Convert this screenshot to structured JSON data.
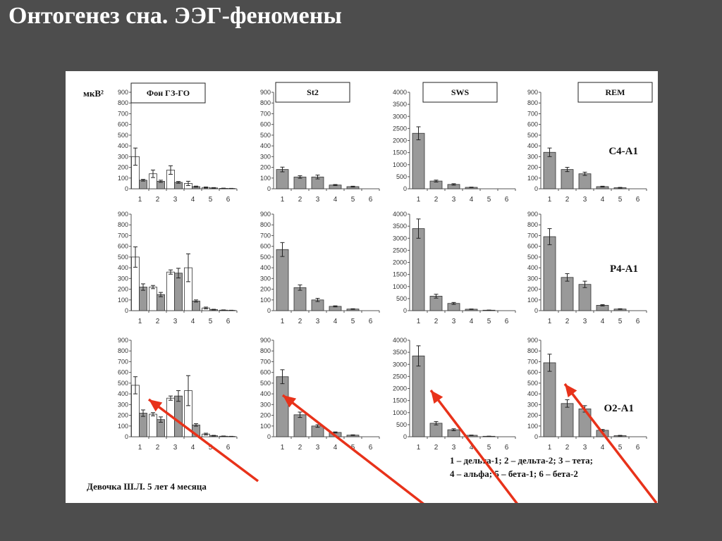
{
  "slide": {
    "title": "Онтогенез сна. ЭЭГ-феномены"
  },
  "figure": {
    "y_unit": "мкВ²",
    "column_titles": [
      "Фон ГЗ-ГО",
      "St2",
      "SWS",
      "REM"
    ],
    "row_labels": [
      "C4-A1",
      "P4-A1",
      "O2-A1"
    ],
    "x_ticks": [
      "1",
      "2",
      "3",
      "4",
      "5",
      "6"
    ],
    "legend": [
      "1 – дельта-1; 2 – дельта-2; 3 – тета;",
      "4 – альфа;  5 – бета-1;  6 – бета-2"
    ],
    "caption": "Девочка Ш.Л. 5 лет 4 месяца",
    "colors": {
      "filled_bar": "#999999",
      "open_bar": "#ffffff",
      "arrow": "#e8321a"
    }
  },
  "chart_data": [
    {
      "type": "bar",
      "panel": "Фон ГЗ-ГО / C4-A1",
      "ylim": [
        0,
        900
      ],
      "yticks": [
        0,
        100,
        200,
        300,
        400,
        500,
        600,
        700,
        800,
        900
      ],
      "categories": [
        "1",
        "2",
        "3",
        "4",
        "5",
        "6"
      ],
      "series": [
        {
          "style": "open",
          "values": [
            300,
            140,
            175,
            50,
            12,
            4
          ],
          "err": [
            80,
            35,
            40,
            20,
            5,
            2
          ]
        },
        {
          "style": "filled",
          "values": [
            80,
            70,
            60,
            20,
            8,
            3
          ],
          "err": [
            8,
            10,
            8,
            5,
            3,
            1
          ]
        }
      ]
    },
    {
      "type": "bar",
      "panel": "St2 / C4-A1",
      "ylim": [
        0,
        900
      ],
      "yticks": [
        0,
        100,
        200,
        300,
        400,
        500,
        600,
        700,
        800,
        900
      ],
      "categories": [
        "1",
        "2",
        "3",
        "4",
        "5",
        "6"
      ],
      "series": [
        {
          "style": "filled",
          "values": [
            180,
            110,
            110,
            35,
            20,
            0
          ],
          "err": [
            22,
            12,
            18,
            5,
            4,
            0
          ]
        }
      ]
    },
    {
      "type": "bar",
      "panel": "SWS / C4-A1",
      "ylim": [
        0,
        4000
      ],
      "yticks": [
        0,
        500,
        1000,
        1500,
        2000,
        2500,
        3000,
        3500,
        4000
      ],
      "categories": [
        "1",
        "2",
        "3",
        "4",
        "5",
        "6"
      ],
      "series": [
        {
          "style": "filled",
          "values": [
            2300,
            320,
            180,
            60,
            0,
            0
          ],
          "err": [
            270,
            40,
            30,
            10,
            0,
            0
          ]
        }
      ]
    },
    {
      "type": "bar",
      "panel": "REM / C4-A1",
      "ylim": [
        0,
        900
      ],
      "yticks": [
        0,
        100,
        200,
        300,
        400,
        500,
        600,
        700,
        800,
        900
      ],
      "categories": [
        "1",
        "2",
        "3",
        "4",
        "5",
        "6"
      ],
      "series": [
        {
          "style": "filled",
          "values": [
            340,
            180,
            140,
            20,
            10,
            0
          ],
          "err": [
            40,
            20,
            15,
            4,
            3,
            0
          ]
        }
      ]
    },
    {
      "type": "bar",
      "panel": "Фон ГЗ-ГО / P4-A1",
      "ylim": [
        0,
        900
      ],
      "yticks": [
        0,
        100,
        200,
        300,
        400,
        500,
        600,
        700,
        800,
        900
      ],
      "categories": [
        "1",
        "2",
        "3",
        "4",
        "5",
        "6"
      ],
      "series": [
        {
          "style": "open",
          "values": [
            500,
            220,
            360,
            400,
            25,
            5
          ],
          "err": [
            95,
            15,
            20,
            130,
            8,
            2
          ]
        },
        {
          "style": "filled",
          "values": [
            220,
            150,
            350,
            90,
            10,
            3
          ],
          "err": [
            30,
            20,
            45,
            10,
            3,
            1
          ]
        }
      ]
    },
    {
      "type": "bar",
      "panel": "St2 / P4-A1",
      "ylim": [
        0,
        900
      ],
      "yticks": [
        0,
        100,
        200,
        300,
        400,
        500,
        600,
        700,
        800,
        900
      ],
      "categories": [
        "1",
        "2",
        "3",
        "4",
        "5",
        "6"
      ],
      "series": [
        {
          "style": "filled",
          "values": [
            570,
            215,
            100,
            40,
            15,
            0
          ],
          "err": [
            65,
            25,
            15,
            5,
            3,
            0
          ]
        }
      ]
    },
    {
      "type": "bar",
      "panel": "SWS / P4-A1",
      "ylim": [
        0,
        4000
      ],
      "yticks": [
        0,
        500,
        1000,
        1500,
        2000,
        2500,
        3000,
        3500,
        4000
      ],
      "categories": [
        "1",
        "2",
        "3",
        "4",
        "5",
        "6"
      ],
      "series": [
        {
          "style": "filled",
          "values": [
            3400,
            600,
            300,
            60,
            20,
            0
          ],
          "err": [
            400,
            80,
            40,
            10,
            5,
            0
          ]
        }
      ]
    },
    {
      "type": "bar",
      "panel": "REM / P4-A1",
      "ylim": [
        0,
        900
      ],
      "yticks": [
        0,
        100,
        200,
        300,
        400,
        500,
        600,
        700,
        800,
        900
      ],
      "categories": [
        "1",
        "2",
        "3",
        "4",
        "5",
        "6"
      ],
      "series": [
        {
          "style": "filled",
          "values": [
            690,
            310,
            245,
            50,
            15,
            0
          ],
          "err": [
            75,
            35,
            30,
            6,
            3,
            0
          ]
        }
      ]
    },
    {
      "type": "bar",
      "panel": "Фон ГЗ-ГО / O2-A1",
      "ylim": [
        0,
        900
      ],
      "yticks": [
        0,
        100,
        200,
        300,
        400,
        500,
        600,
        700,
        800,
        900
      ],
      "categories": [
        "1",
        "2",
        "3",
        "4",
        "5",
        "6"
      ],
      "series": [
        {
          "style": "open",
          "values": [
            480,
            210,
            360,
            430,
            25,
            5
          ],
          "err": [
            80,
            15,
            20,
            140,
            8,
            2
          ]
        },
        {
          "style": "filled",
          "values": [
            220,
            160,
            380,
            110,
            10,
            3
          ],
          "err": [
            30,
            25,
            50,
            12,
            3,
            1
          ]
        }
      ]
    },
    {
      "type": "bar",
      "panel": "St2 / O2-A1",
      "ylim": [
        0,
        900
      ],
      "yticks": [
        0,
        100,
        200,
        300,
        400,
        500,
        600,
        700,
        800,
        900
      ],
      "categories": [
        "1",
        "2",
        "3",
        "4",
        "5",
        "6"
      ],
      "series": [
        {
          "style": "filled",
          "values": [
            560,
            205,
            100,
            40,
            15,
            0
          ],
          "err": [
            65,
            25,
            12,
            5,
            3,
            0
          ]
        }
      ]
    },
    {
      "type": "bar",
      "panel": "SWS / O2-A1",
      "ylim": [
        0,
        4000
      ],
      "yticks": [
        0,
        500,
        1000,
        1500,
        2000,
        2500,
        3000,
        3500,
        4000
      ],
      "categories": [
        "1",
        "2",
        "3",
        "4",
        "5",
        "6"
      ],
      "series": [
        {
          "style": "filled",
          "values": [
            3350,
            560,
            290,
            60,
            20,
            0
          ],
          "err": [
            420,
            70,
            40,
            10,
            5,
            0
          ]
        }
      ]
    },
    {
      "type": "bar",
      "panel": "REM / O2-A1",
      "ylim": [
        0,
        900
      ],
      "yticks": [
        0,
        100,
        200,
        300,
        400,
        500,
        600,
        700,
        800,
        900
      ],
      "categories": [
        "1",
        "2",
        "3",
        "4",
        "5",
        "6"
      ],
      "series": [
        {
          "style": "filled",
          "values": [
            690,
            310,
            260,
            60,
            10,
            0
          ],
          "err": [
            80,
            35,
            30,
            8,
            3,
            0
          ]
        }
      ]
    }
  ]
}
